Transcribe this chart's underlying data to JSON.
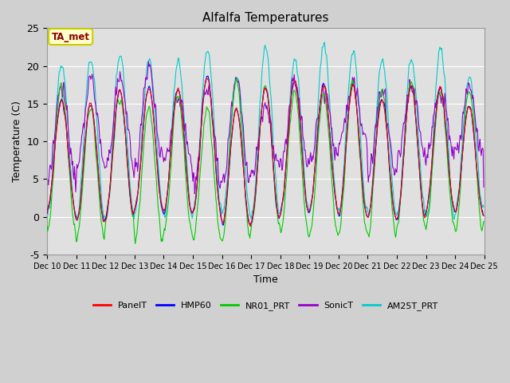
{
  "title": "Alfalfa Temperatures",
  "xlabel": "Time",
  "ylabel": "Temperature (C)",
  "ylim": [
    -5,
    25
  ],
  "outer_bg_color": "#d8d8d8",
  "inner_bg_color": "#e8e8e8",
  "annotation_text": "TA_met",
  "annotation_color": "#8b0000",
  "annotation_bg": "#ffffcc",
  "annotation_edge": "#cccc00",
  "legend_labels": [
    "PanelT",
    "HMP60",
    "NR01_PRT",
    "SonicT",
    "AM25T_PRT"
  ],
  "line_colors": [
    "#ff0000",
    "#0000ff",
    "#00cc00",
    "#9900cc",
    "#00cccc"
  ],
  "yticks": [
    -5,
    0,
    5,
    10,
    15,
    20,
    25
  ],
  "xtick_labels": [
    "Dec 10",
    "Dec 11",
    "Dec 12",
    "Dec 13",
    "Dec 14",
    "Dec 15",
    "Dec 16",
    "Dec 17",
    "Dec 18",
    "Dec 19",
    "Dec 20",
    "Dec 21",
    "Dec 22",
    "Dec 23",
    "Dec 24",
    "Dec 25"
  ],
  "num_days": 15,
  "points_per_day": 48
}
